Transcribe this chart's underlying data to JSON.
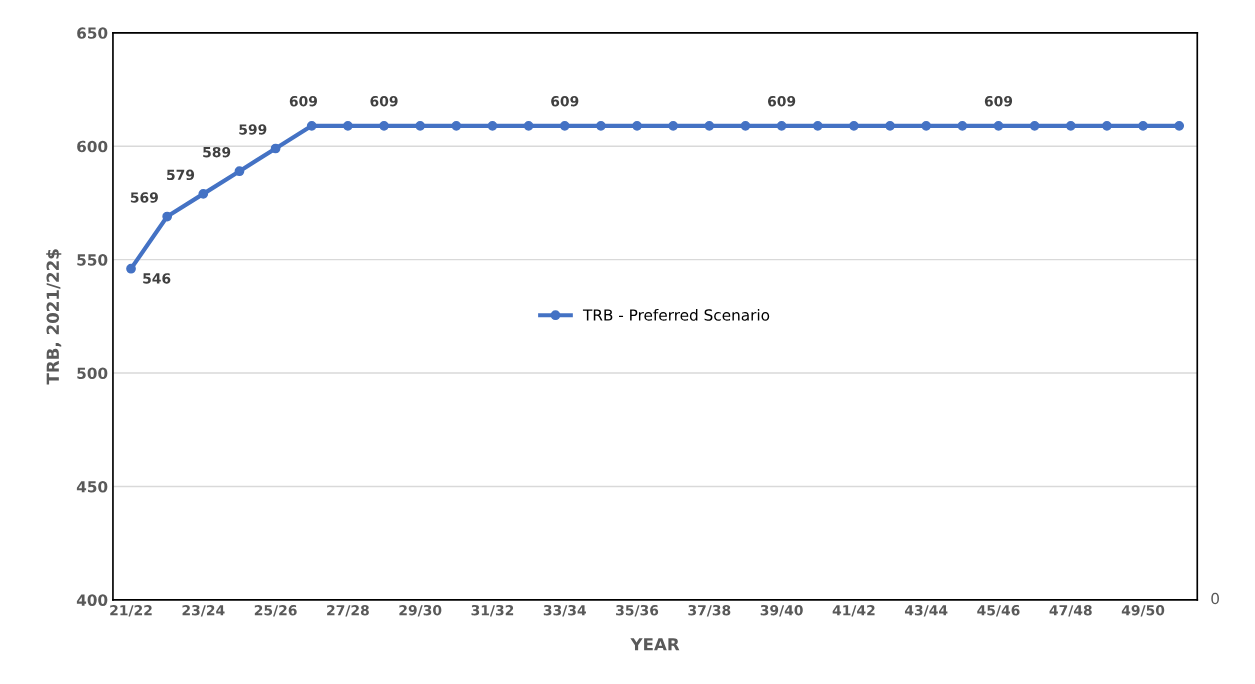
{
  "chart_data": {
    "type": "line",
    "xlabel": "YEAR",
    "ylabel": "TRB, 2021/22$",
    "categories": [
      "21/22",
      null,
      "23/24",
      null,
      "25/26",
      null,
      "27/28",
      null,
      "29/30",
      null,
      "31/32",
      null,
      "33/34",
      null,
      "35/36",
      null,
      "37/38",
      null,
      "39/40",
      null,
      "41/42",
      null,
      "43/44",
      null,
      "45/46",
      null,
      "47/48",
      null,
      "49/50",
      null
    ],
    "series": [
      {
        "name": "TRB - Preferred Scenario",
        "color": "#4472c4",
        "values": [
          546,
          569,
          579,
          589,
          599,
          609,
          609,
          609,
          609,
          609,
          609,
          609,
          609,
          609,
          609,
          609,
          609,
          609,
          609,
          609,
          609,
          609,
          609,
          609,
          609,
          609,
          609,
          609,
          609,
          609
        ],
        "value_labels": [
          "546",
          "569",
          "579",
          "589",
          "599",
          "609",
          null,
          "609",
          null,
          null,
          null,
          null,
          "609",
          null,
          null,
          null,
          null,
          null,
          "609",
          null,
          null,
          null,
          null,
          null,
          "609",
          null,
          null,
          null,
          null,
          null
        ]
      }
    ],
    "ylim": [
      400,
      650
    ],
    "yticks": [
      400,
      450,
      500,
      550,
      600,
      650
    ],
    "annotations": [
      "0"
    ],
    "grid": "y",
    "legend": "center",
    "marker": "circle",
    "line_style": "solid"
  }
}
